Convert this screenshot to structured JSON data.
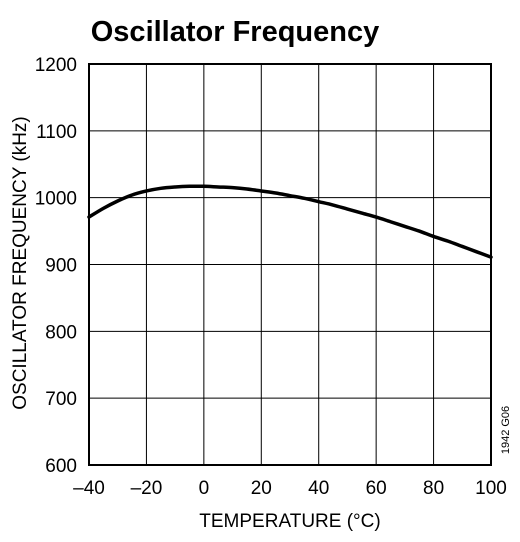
{
  "chart_data": {
    "type": "line",
    "title": "Oscillator Frequency",
    "xlabel": "TEMPERATURE (°C)",
    "ylabel": "OSCILLATOR FREQUENCY (kHz)",
    "xlim": [
      -40,
      100
    ],
    "ylim": [
      600,
      1200
    ],
    "x_ticks": [
      -40,
      -20,
      0,
      20,
      40,
      60,
      80,
      100
    ],
    "x_tick_labels": [
      "–40",
      "–20",
      "0",
      "20",
      "40",
      "60",
      "80",
      "100"
    ],
    "y_ticks": [
      600,
      700,
      800,
      900,
      1000,
      1100,
      1200
    ],
    "y_tick_labels": [
      "600",
      "700",
      "800",
      "900",
      "1000",
      "1100",
      "1200"
    ],
    "grid": true,
    "series": [
      {
        "x": [
          -40,
          -35,
          -30,
          -25,
          -20,
          -15,
          -10,
          -5,
          0,
          5,
          10,
          15,
          20,
          25,
          30,
          35,
          40,
          45,
          50,
          55,
          60,
          65,
          70,
          75,
          80,
          85,
          90,
          95,
          100
        ],
        "values": [
          971,
          984,
          995,
          1004,
          1010,
          1014,
          1016,
          1017,
          1017,
          1016,
          1015,
          1013,
          1010,
          1007,
          1003,
          999,
          994,
          989,
          983,
          977,
          971,
          964,
          957,
          950,
          942,
          935,
          927,
          919,
          911
        ]
      }
    ],
    "annotation": "1942 G06",
    "line_color": "#000000"
  }
}
